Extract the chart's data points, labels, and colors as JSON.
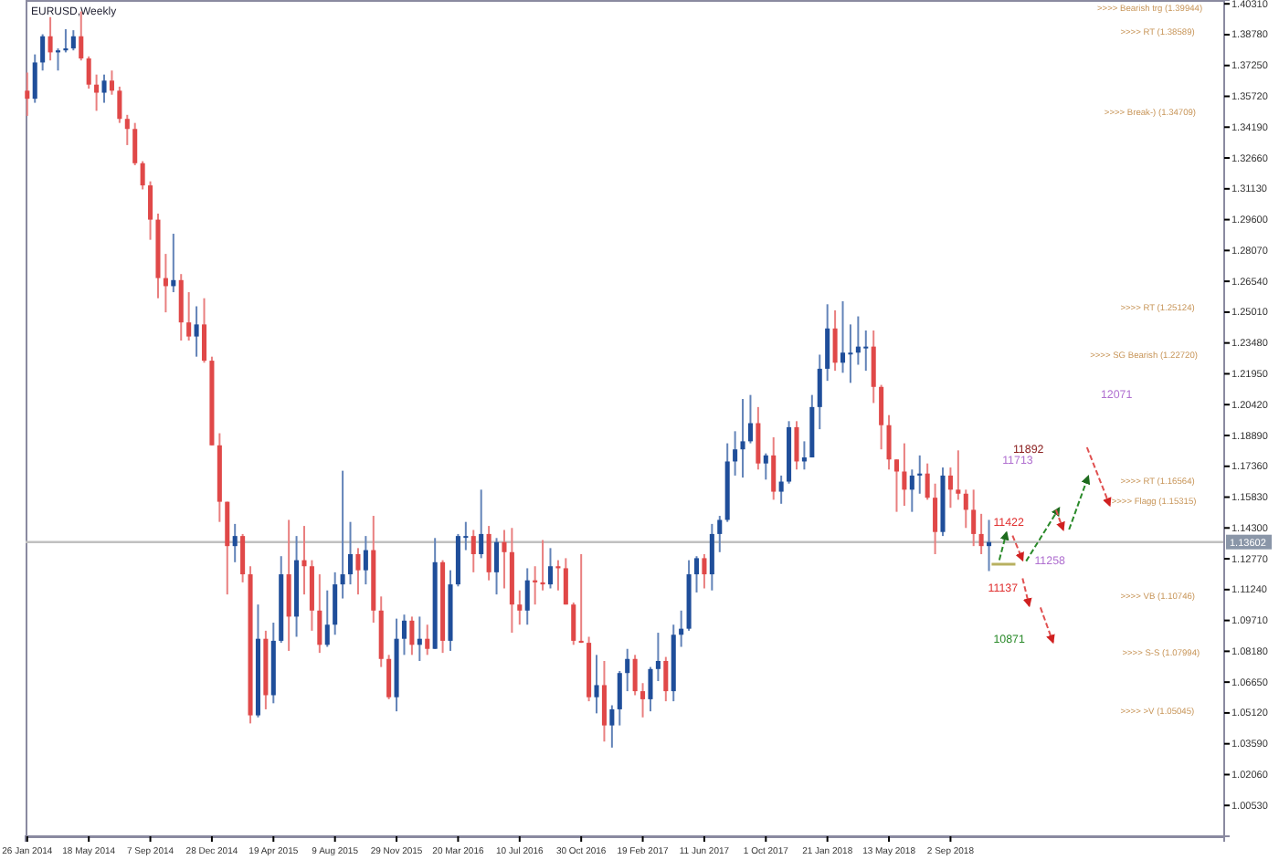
{
  "chart_data": {
    "type": "candlestick",
    "title": "EURUSD,Weekly",
    "x": [
      "2014-01-26",
      "2014-02-09",
      "2014-02-23",
      "2014-03-09",
      "2014-03-23",
      "2014-04-06",
      "2014-04-20",
      "2014-05-04",
      "2014-05-18",
      "2014-06-01",
      "2014-06-15",
      "2014-06-29",
      "2014-07-13",
      "2014-07-27",
      "2014-08-10",
      "2014-08-24",
      "2014-09-07",
      "2014-09-21",
      "2014-10-05",
      "2014-10-19",
      "2014-11-02",
      "2014-11-16",
      "2014-11-30",
      "2014-12-14",
      "2014-12-28",
      "2015-01-11",
      "2015-01-25",
      "2015-02-08",
      "2015-02-22",
      "2015-03-08",
      "2015-03-22",
      "2015-04-05",
      "2015-04-19",
      "2015-05-03",
      "2015-05-17",
      "2015-05-31",
      "2015-06-14",
      "2015-06-28",
      "2015-07-12",
      "2015-07-26",
      "2015-08-09",
      "2015-08-23",
      "2015-09-06",
      "2015-09-20",
      "2015-10-04",
      "2015-10-18",
      "2015-11-01",
      "2015-11-15",
      "2015-11-29",
      "2015-12-13",
      "2015-12-27",
      "2016-01-10",
      "2016-01-24",
      "2016-02-07",
      "2016-02-21",
      "2016-03-06",
      "2016-03-20",
      "2016-04-03",
      "2016-04-17",
      "2016-05-01",
      "2016-05-15",
      "2016-05-29",
      "2016-06-12",
      "2016-06-26",
      "2016-07-10",
      "2016-07-24",
      "2016-08-07",
      "2016-08-21",
      "2016-09-04",
      "2016-09-18",
      "2016-10-02",
      "2016-10-16",
      "2016-10-30",
      "2016-11-13",
      "2016-11-27",
      "2016-12-11",
      "2016-12-25",
      "2017-01-08",
      "2017-01-22",
      "2017-02-05",
      "2017-02-19",
      "2017-03-05",
      "2017-03-19",
      "2017-04-02",
      "2017-04-16",
      "2017-04-30",
      "2017-05-14",
      "2017-05-28",
      "2017-06-11",
      "2017-06-25",
      "2017-07-09",
      "2017-07-23",
      "2017-08-06",
      "2017-08-20",
      "2017-09-03",
      "2017-09-17",
      "2017-10-01",
      "2017-10-15",
      "2017-10-29",
      "2017-11-12",
      "2017-11-26",
      "2017-12-10",
      "2017-12-24",
      "2018-01-07",
      "2018-01-21",
      "2018-02-04",
      "2018-02-18",
      "2018-03-04",
      "2018-03-18",
      "2018-04-01",
      "2018-04-15",
      "2018-04-29",
      "2018-05-13",
      "2018-05-27",
      "2018-06-10",
      "2018-06-24",
      "2018-07-08",
      "2018-07-22",
      "2018-08-05",
      "2018-08-19",
      "2018-09-02",
      "2018-09-16",
      "2018-09-30",
      "2018-10-14",
      "2018-10-28",
      "2018-11-11"
    ],
    "ohlc": [
      [
        1.36,
        1.369,
        1.3475,
        1.356
      ],
      [
        1.356,
        1.378,
        1.354,
        1.374
      ],
      [
        1.374,
        1.388,
        1.37,
        1.387
      ],
      [
        1.387,
        1.3965,
        1.375,
        1.379
      ],
      [
        1.379,
        1.381,
        1.37,
        1.38
      ],
      [
        1.38,
        1.3905,
        1.379,
        1.381
      ],
      [
        1.381,
        1.39,
        1.38,
        1.387
      ],
      [
        1.387,
        1.3993,
        1.375,
        1.376
      ],
      [
        1.376,
        1.377,
        1.361,
        1.363
      ],
      [
        1.363,
        1.368,
        1.35,
        1.359
      ],
      [
        1.359,
        1.368,
        1.354,
        1.365
      ],
      [
        1.365,
        1.37,
        1.358,
        1.36
      ],
      [
        1.36,
        1.362,
        1.344,
        1.346
      ],
      [
        1.346,
        1.348,
        1.333,
        1.341
      ],
      [
        1.341,
        1.344,
        1.323,
        1.324
      ],
      [
        1.324,
        1.325,
        1.311,
        1.313
      ],
      [
        1.313,
        1.315,
        1.286,
        1.296
      ],
      [
        1.296,
        1.299,
        1.257,
        1.267
      ],
      [
        1.267,
        1.279,
        1.25,
        1.263
      ],
      [
        1.263,
        1.289,
        1.26,
        1.266
      ],
      [
        1.266,
        1.269,
        1.236,
        1.245
      ],
      [
        1.245,
        1.26,
        1.236,
        1.238
      ],
      [
        1.238,
        1.253,
        1.228,
        1.244
      ],
      [
        1.244,
        1.257,
        1.225,
        1.226
      ],
      [
        1.226,
        1.228,
        1.184,
        1.184
      ],
      [
        1.184,
        1.19,
        1.146,
        1.156
      ],
      [
        1.156,
        1.156,
        1.11,
        1.134
      ],
      [
        1.134,
        1.145,
        1.126,
        1.139
      ],
      [
        1.139,
        1.14,
        1.116,
        1.12
      ],
      [
        1.12,
        1.124,
        1.046,
        1.05
      ],
      [
        1.05,
        1.105,
        1.049,
        1.088
      ],
      [
        1.088,
        1.092,
        1.053,
        1.06
      ],
      [
        1.06,
        1.096,
        1.056,
        1.087
      ],
      [
        1.087,
        1.129,
        1.086,
        1.12
      ],
      [
        1.12,
        1.147,
        1.082,
        1.099
      ],
      [
        1.099,
        1.139,
        1.089,
        1.127
      ],
      [
        1.127,
        1.144,
        1.11,
        1.124
      ],
      [
        1.124,
        1.127,
        1.092,
        1.102
      ],
      [
        1.102,
        1.12,
        1.081,
        1.085
      ],
      [
        1.085,
        1.112,
        1.084,
        1.095
      ],
      [
        1.095,
        1.121,
        1.09,
        1.115
      ],
      [
        1.115,
        1.1714,
        1.108,
        1.12
      ],
      [
        1.12,
        1.146,
        1.115,
        1.13
      ],
      [
        1.13,
        1.133,
        1.11,
        1.122
      ],
      [
        1.122,
        1.139,
        1.115,
        1.132
      ],
      [
        1.132,
        1.149,
        1.096,
        1.102
      ],
      [
        1.102,
        1.109,
        1.074,
        1.078
      ],
      [
        1.078,
        1.08,
        1.058,
        1.059
      ],
      [
        1.059,
        1.098,
        1.052,
        1.088
      ],
      [
        1.088,
        1.1,
        1.08,
        1.097
      ],
      [
        1.097,
        1.099,
        1.08,
        1.085
      ],
      [
        1.085,
        1.099,
        1.077,
        1.088
      ],
      [
        1.088,
        1.095,
        1.08,
        1.083
      ],
      [
        1.083,
        1.138,
        1.083,
        1.126
      ],
      [
        1.126,
        1.127,
        1.081,
        1.087
      ],
      [
        1.087,
        1.122,
        1.082,
        1.115
      ],
      [
        1.115,
        1.14,
        1.114,
        1.139
      ],
      [
        1.139,
        1.146,
        1.132,
        1.139
      ],
      [
        1.139,
        1.142,
        1.121,
        1.13
      ],
      [
        1.13,
        1.162,
        1.128,
        1.14
      ],
      [
        1.14,
        1.144,
        1.117,
        1.121
      ],
      [
        1.121,
        1.138,
        1.11,
        1.136
      ],
      [
        1.136,
        1.142,
        1.113,
        1.131
      ],
      [
        1.131,
        1.143,
        1.091,
        1.105
      ],
      [
        1.105,
        1.112,
        1.095,
        1.102
      ],
      [
        1.102,
        1.123,
        1.095,
        1.117
      ],
      [
        1.117,
        1.124,
        1.105,
        1.116
      ],
      [
        1.116,
        1.137,
        1.112,
        1.115
      ],
      [
        1.115,
        1.133,
        1.113,
        1.124
      ],
      [
        1.124,
        1.127,
        1.112,
        1.123
      ],
      [
        1.123,
        1.128,
        1.105,
        1.105
      ],
      [
        1.105,
        1.106,
        1.085,
        1.087
      ],
      [
        1.087,
        1.13,
        1.086,
        1.086
      ],
      [
        1.086,
        1.089,
        1.057,
        1.059
      ],
      [
        1.059,
        1.08,
        1.051,
        1.065
      ],
      [
        1.065,
        1.077,
        1.037,
        1.045
      ],
      [
        1.045,
        1.055,
        1.034,
        1.053
      ],
      [
        1.053,
        1.072,
        1.045,
        1.071
      ],
      [
        1.071,
        1.083,
        1.062,
        1.078
      ],
      [
        1.078,
        1.08,
        1.06,
        1.062
      ],
      [
        1.062,
        1.066,
        1.049,
        1.058
      ],
      [
        1.058,
        1.074,
        1.052,
        1.073
      ],
      [
        1.073,
        1.091,
        1.067,
        1.077
      ],
      [
        1.077,
        1.079,
        1.057,
        1.062
      ],
      [
        1.062,
        1.095,
        1.057,
        1.09
      ],
      [
        1.09,
        1.102,
        1.084,
        1.093
      ],
      [
        1.093,
        1.127,
        1.092,
        1.12
      ],
      [
        1.12,
        1.129,
        1.111,
        1.128
      ],
      [
        1.128,
        1.13,
        1.113,
        1.12
      ],
      [
        1.12,
        1.145,
        1.112,
        1.14
      ],
      [
        1.14,
        1.149,
        1.131,
        1.147
      ],
      [
        1.147,
        1.185,
        1.146,
        1.176
      ],
      [
        1.176,
        1.191,
        1.169,
        1.182
      ],
      [
        1.182,
        1.207,
        1.168,
        1.186
      ],
      [
        1.186,
        1.209,
        1.185,
        1.195
      ],
      [
        1.195,
        1.203,
        1.172,
        1.175
      ],
      [
        1.175,
        1.18,
        1.167,
        1.179
      ],
      [
        1.179,
        1.188,
        1.157,
        1.161
      ],
      [
        1.161,
        1.169,
        1.155,
        1.166
      ],
      [
        1.166,
        1.196,
        1.165,
        1.193
      ],
      [
        1.193,
        1.196,
        1.172,
        1.176
      ],
      [
        1.176,
        1.186,
        1.172,
        1.178
      ],
      [
        1.178,
        1.209,
        1.178,
        1.203
      ],
      [
        1.203,
        1.229,
        1.192,
        1.222
      ],
      [
        1.222,
        1.254,
        1.216,
        1.242
      ],
      [
        1.242,
        1.251,
        1.221,
        1.225
      ],
      [
        1.225,
        1.2555,
        1.22,
        1.23
      ],
      [
        1.23,
        1.244,
        1.215,
        1.23
      ],
      [
        1.23,
        1.248,
        1.224,
        1.233
      ],
      [
        1.233,
        1.241,
        1.221,
        1.233
      ],
      [
        1.233,
        1.241,
        1.205,
        1.213
      ],
      [
        1.213,
        1.214,
        1.182,
        1.194
      ],
      [
        1.194,
        1.199,
        1.172,
        1.177
      ],
      [
        1.177,
        1.177,
        1.151,
        1.171
      ],
      [
        1.171,
        1.185,
        1.154,
        1.162
      ],
      [
        1.162,
        1.172,
        1.151,
        1.169
      ],
      [
        1.169,
        1.179,
        1.16,
        1.17
      ],
      [
        1.17,
        1.175,
        1.157,
        1.158
      ],
      [
        1.158,
        1.165,
        1.13,
        1.141
      ],
      [
        1.141,
        1.173,
        1.139,
        1.169
      ],
      [
        1.169,
        1.173,
        1.153,
        1.162
      ],
      [
        1.162,
        1.1815,
        1.157,
        1.16
      ],
      [
        1.16,
        1.162,
        1.143,
        1.152
      ],
      [
        1.152,
        1.162,
        1.134,
        1.14
      ],
      [
        1.14,
        1.15,
        1.13,
        1.134
      ],
      [
        1.134,
        1.147,
        1.1216,
        1.136
      ]
    ],
    "colors": [
      "#e04848",
      "#1f4e9a",
      "#1f4e9a",
      "#e04848",
      "#1f4e9a",
      "#1f4e9a",
      "#1f4e9a",
      "#e04848",
      "#e04848",
      "#e04848",
      "#1f4e9a",
      "#e04848",
      "#e04848",
      "#e04848",
      "#e04848",
      "#e04848",
      "#e04848",
      "#e04848",
      "#e04848",
      "#1f4e9a",
      "#e04848",
      "#e04848",
      "#1f4e9a",
      "#e04848",
      "#e04848",
      "#e04848",
      "#e04848",
      "#1f4e9a",
      "#e04848",
      "#e04848",
      "#1f4e9a",
      "#e04848",
      "#1f4e9a",
      "#1f4e9a",
      "#e04848",
      "#1f4e9a",
      "#e04848",
      "#e04848",
      "#e04848",
      "#1f4e9a",
      "#1f4e9a",
      "#1f4e9a",
      "#1f4e9a",
      "#e04848",
      "#1f4e9a",
      "#e04848",
      "#e04848",
      "#e04848",
      "#1f4e9a",
      "#1f4e9a",
      "#e04848",
      "#1f4e9a",
      "#e04848",
      "#1f4e9a",
      "#e04848",
      "#1f4e9a",
      "#1f4e9a",
      "#1f4e9a",
      "#e04848",
      "#1f4e9a",
      "#e04848",
      "#1f4e9a",
      "#e04848",
      "#e04848",
      "#e04848",
      "#1f4e9a",
      "#e04848",
      "#e04848",
      "#1f4e9a",
      "#e04848",
      "#e04848",
      "#e04848",
      "#e04848",
      "#e04848",
      "#1f4e9a",
      "#e04848",
      "#1f4e9a",
      "#1f4e9a",
      "#1f4e9a",
      "#e04848",
      "#e04848",
      "#1f4e9a",
      "#1f4e9a",
      "#e04848",
      "#1f4e9a",
      "#1f4e9a",
      "#1f4e9a",
      "#1f4e9a",
      "#e04848",
      "#1f4e9a",
      "#1f4e9a",
      "#1f4e9a",
      "#1f4e9a",
      "#1f4e9a",
      "#1f4e9a",
      "#e04848",
      "#1f4e9a",
      "#e04848",
      "#1f4e9a",
      "#1f4e9a",
      "#e04848",
      "#1f4e9a",
      "#1f4e9a",
      "#1f4e9a",
      "#1f4e9a",
      "#e04848",
      "#1f4e9a",
      "#1f4e9a",
      "#1f4e9a",
      "#1f4e9a",
      "#e04848",
      "#e04848",
      "#e04848",
      "#e04848",
      "#e04848",
      "#1f4e9a",
      "#1f4e9a",
      "#e04848",
      "#e04848",
      "#1f4e9a",
      "#e04848",
      "#e04848",
      "#e04848",
      "#e04848",
      "#e04848",
      "#1f4e9a"
    ],
    "xlim": [
      "2014-01-23",
      "2020-01-13"
    ],
    "xticks": [
      {
        "value": "2014-01-26",
        "label": "26 Jan 2014"
      },
      {
        "value": "2014-05-18",
        "label": "18 May 2014"
      },
      {
        "value": "2014-09-07",
        "label": "7 Sep 2014"
      },
      {
        "value": "2014-12-28",
        "label": "28 Dec 2014"
      },
      {
        "value": "2015-04-19",
        "label": "19 Apr 2015"
      },
      {
        "value": "2015-08-09",
        "label": "9 Aug 2015"
      },
      {
        "value": "2015-11-29",
        "label": "29 Nov 2015"
      },
      {
        "value": "2016-03-20",
        "label": "20 Mar 2016"
      },
      {
        "value": "2016-07-10",
        "label": "10 Jul 2016"
      },
      {
        "value": "2016-10-30",
        "label": "30 Oct 2016"
      },
      {
        "value": "2017-02-19",
        "label": "19 Feb 2017"
      },
      {
        "value": "2017-06-11",
        "label": "11 Jun 2017"
      },
      {
        "value": "2017-10-01",
        "label": "1 Oct 2017"
      },
      {
        "value": "2018-01-21",
        "label": "21 Jan 2018"
      },
      {
        "value": "2018-05-13",
        "label": "13 May 2018"
      },
      {
        "value": "2018-09-02",
        "label": "2 Sep 2018"
      }
    ],
    "ylim": [
      0.99,
      1.405
    ],
    "yticks": [
      {
        "value": 1.4031,
        "label": "1.40310"
      },
      {
        "value": 1.3878,
        "label": "1.38780"
      },
      {
        "value": 1.3725,
        "label": "1.37250"
      },
      {
        "value": 1.3572,
        "label": "1.35720"
      },
      {
        "value": 1.3419,
        "label": "1.34190"
      },
      {
        "value": 1.3266,
        "label": "1.32660"
      },
      {
        "value": 1.3113,
        "label": "1.31130"
      },
      {
        "value": 1.296,
        "label": "1.29600"
      },
      {
        "value": 1.2807,
        "label": "1.28070"
      },
      {
        "value": 1.2654,
        "label": "1.26540"
      },
      {
        "value": 1.2501,
        "label": "1.25010"
      },
      {
        "value": 1.2348,
        "label": "1.23480"
      },
      {
        "value": 1.2195,
        "label": "1.21950"
      },
      {
        "value": 1.2042,
        "label": "1.20420"
      },
      {
        "value": 1.1889,
        "label": "1.18890"
      },
      {
        "value": 1.1736,
        "label": "1.17360"
      },
      {
        "value": 1.1583,
        "label": "1.15830"
      },
      {
        "value": 1.143,
        "label": "1.14300"
      },
      {
        "value": 1.1277,
        "label": "1.12770"
      },
      {
        "value": 1.1124,
        "label": "1.11240"
      },
      {
        "value": 1.0971,
        "label": "1.09710"
      },
      {
        "value": 1.0818,
        "label": "1.08180"
      },
      {
        "value": 1.0665,
        "label": "1.06650"
      },
      {
        "value": 1.0512,
        "label": "1.05120"
      },
      {
        "value": 1.0359,
        "label": "1.03590"
      },
      {
        "value": 1.0206,
        "label": "1.02060"
      },
      {
        "value": 1.0053,
        "label": "1.00530"
      }
    ],
    "ref_lines": [
      {
        "axis": "y",
        "value": 1.13602,
        "label": "1.13602",
        "color": "#c0c0c0"
      }
    ],
    "annotations": [
      ">>>> Bearish trg (1.39944)",
      ">>>> RT (1.38589)",
      ">>>> Break-) (1.34709)",
      ">>>> RT (1.25124)",
      ">>>> SG Bearish (1.22720)",
      ">>>> RT (1.16564)",
      ">>>> Flagg (1.15315)",
      ">>>> VB (1.10746)",
      ">>>> S-S (1.07994)",
      ">>>> >V (1.05045)",
      "11892",
      "11713",
      "12071",
      "11422",
      "11258",
      "11137",
      "10871"
    ]
  }
}
